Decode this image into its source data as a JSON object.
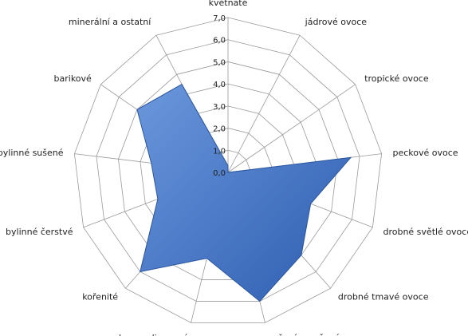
{
  "chart_data": {
    "type": "radar",
    "title": "",
    "categories": [
      "květnaté",
      "jádrové ovoce",
      "tropické ovoce",
      "peckové ovoce",
      "drobné světlé ovoce",
      "drobné tmavé ovoce",
      "vařené a sušené ovoce",
      "karamelizované",
      "kořenité",
      "bylinné čerstvé",
      "bylinné sušené",
      "barikové",
      "minerální a ostatní"
    ],
    "series": [
      {
        "values": [
          0.3,
          0.0,
          0.0,
          5.6,
          4.0,
          5.0,
          6.0,
          4.0,
          6.0,
          3.4,
          3.5,
          5.0,
          4.5
        ],
        "color": "#3a6fc4"
      }
    ],
    "rlim": [
      0,
      7
    ],
    "tick_labels": [
      "0,0",
      "1,0",
      "2,0",
      "3,0",
      "4,0",
      "5,0",
      "6,0",
      "7,0"
    ],
    "grid": true,
    "legend": "none"
  }
}
